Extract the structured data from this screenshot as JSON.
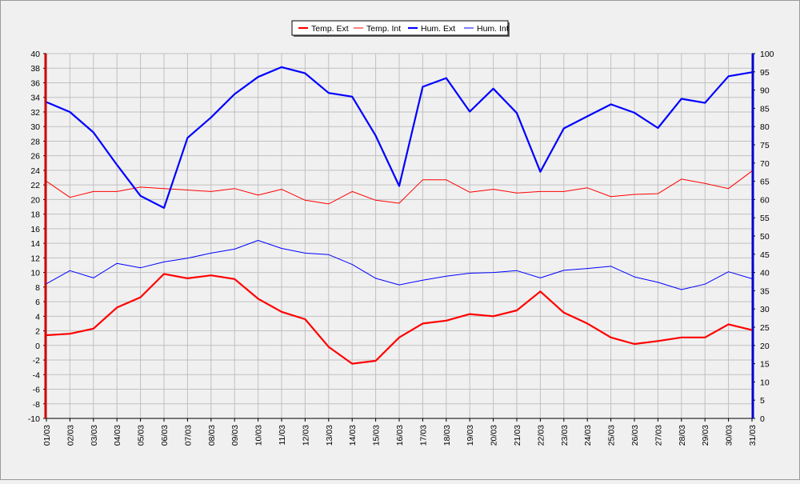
{
  "chart_data": {
    "type": "line",
    "title": "",
    "xlabel": "",
    "ylabel": "",
    "y2label": "",
    "categories": [
      "01/03",
      "02/03",
      "03/03",
      "04/03",
      "05/03",
      "06/03",
      "07/03",
      "08/03",
      "09/03",
      "10/03",
      "11/03",
      "12/03",
      "13/03",
      "14/03",
      "15/03",
      "16/03",
      "17/03",
      "18/03",
      "19/03",
      "20/03",
      "21/03",
      "22/03",
      "23/03",
      "24/03",
      "25/03",
      "26/03",
      "27/03",
      "28/03",
      "29/03",
      "30/03",
      "31/03"
    ],
    "ylim": [
      -10,
      40
    ],
    "yticks": [
      -10,
      -8,
      -6,
      -4,
      -2,
      0,
      2,
      4,
      6,
      8,
      10,
      12,
      14,
      16,
      18,
      20,
      22,
      24,
      26,
      28,
      30,
      32,
      34,
      36,
      38,
      40
    ],
    "y2lim": [
      0,
      100
    ],
    "y2ticks": [
      0,
      5,
      10,
      15,
      20,
      25,
      30,
      35,
      40,
      45,
      50,
      55,
      60,
      65,
      70,
      75,
      80,
      85,
      90,
      95,
      100
    ],
    "grid": true,
    "legend_position": "top-center",
    "series": [
      {
        "name": "Temp. Ext",
        "axis": "left",
        "color": "#ff0000",
        "width": 2.2,
        "values": [
          1.4,
          1.6,
          2.3,
          5.2,
          6.6,
          9.8,
          9.2,
          9.6,
          9.1,
          6.4,
          4.6,
          3.6,
          -0.2,
          -2.5,
          -2.1,
          1.1,
          3.0,
          3.4,
          4.3,
          4.0,
          4.8,
          7.4,
          4.5,
          3.0,
          1.1,
          0.2,
          0.6,
          1.1,
          1.1,
          2.9,
          2.1
        ]
      },
      {
        "name": "Temp. Int",
        "axis": "left",
        "color": "#ff0000",
        "width": 1,
        "values": [
          22.5,
          20.3,
          21.1,
          21.1,
          21.7,
          21.5,
          21.3,
          21.1,
          21.5,
          20.6,
          21.4,
          19.9,
          19.4,
          21.1,
          19.9,
          19.5,
          22.7,
          22.7,
          21.0,
          21.4,
          20.9,
          21.1,
          21.1,
          21.6,
          20.4,
          20.7,
          20.8,
          22.8,
          22.2,
          21.5,
          23.9
        ]
      },
      {
        "name": "Hum. Ext",
        "axis": "right",
        "color": "#0000ff",
        "width": 2.2,
        "values": [
          86.7,
          84.0,
          78.4,
          69.5,
          61.0,
          57.7,
          76.9,
          82.5,
          88.9,
          93.6,
          96.3,
          94.6,
          89.2,
          88.2,
          77.5,
          63.7,
          90.9,
          93.3,
          84.1,
          90.4,
          83.7,
          67.6,
          79.5,
          82.8,
          86.1,
          83.8,
          79.6,
          87.6,
          86.5,
          93.8,
          94.9
        ]
      },
      {
        "name": "Hum. Int",
        "axis": "right",
        "color": "#0000ff",
        "width": 1,
        "values": [
          36.9,
          40.5,
          38.5,
          42.5,
          41.3,
          42.9,
          43.9,
          45.3,
          46.4,
          48.8,
          46.6,
          45.3,
          44.9,
          42.2,
          38.4,
          36.6,
          37.9,
          39.0,
          39.8,
          40.0,
          40.5,
          38.5,
          40.6,
          41.1,
          41.7,
          38.8,
          37.3,
          35.3,
          36.8,
          40.2,
          38.3
        ]
      }
    ]
  }
}
